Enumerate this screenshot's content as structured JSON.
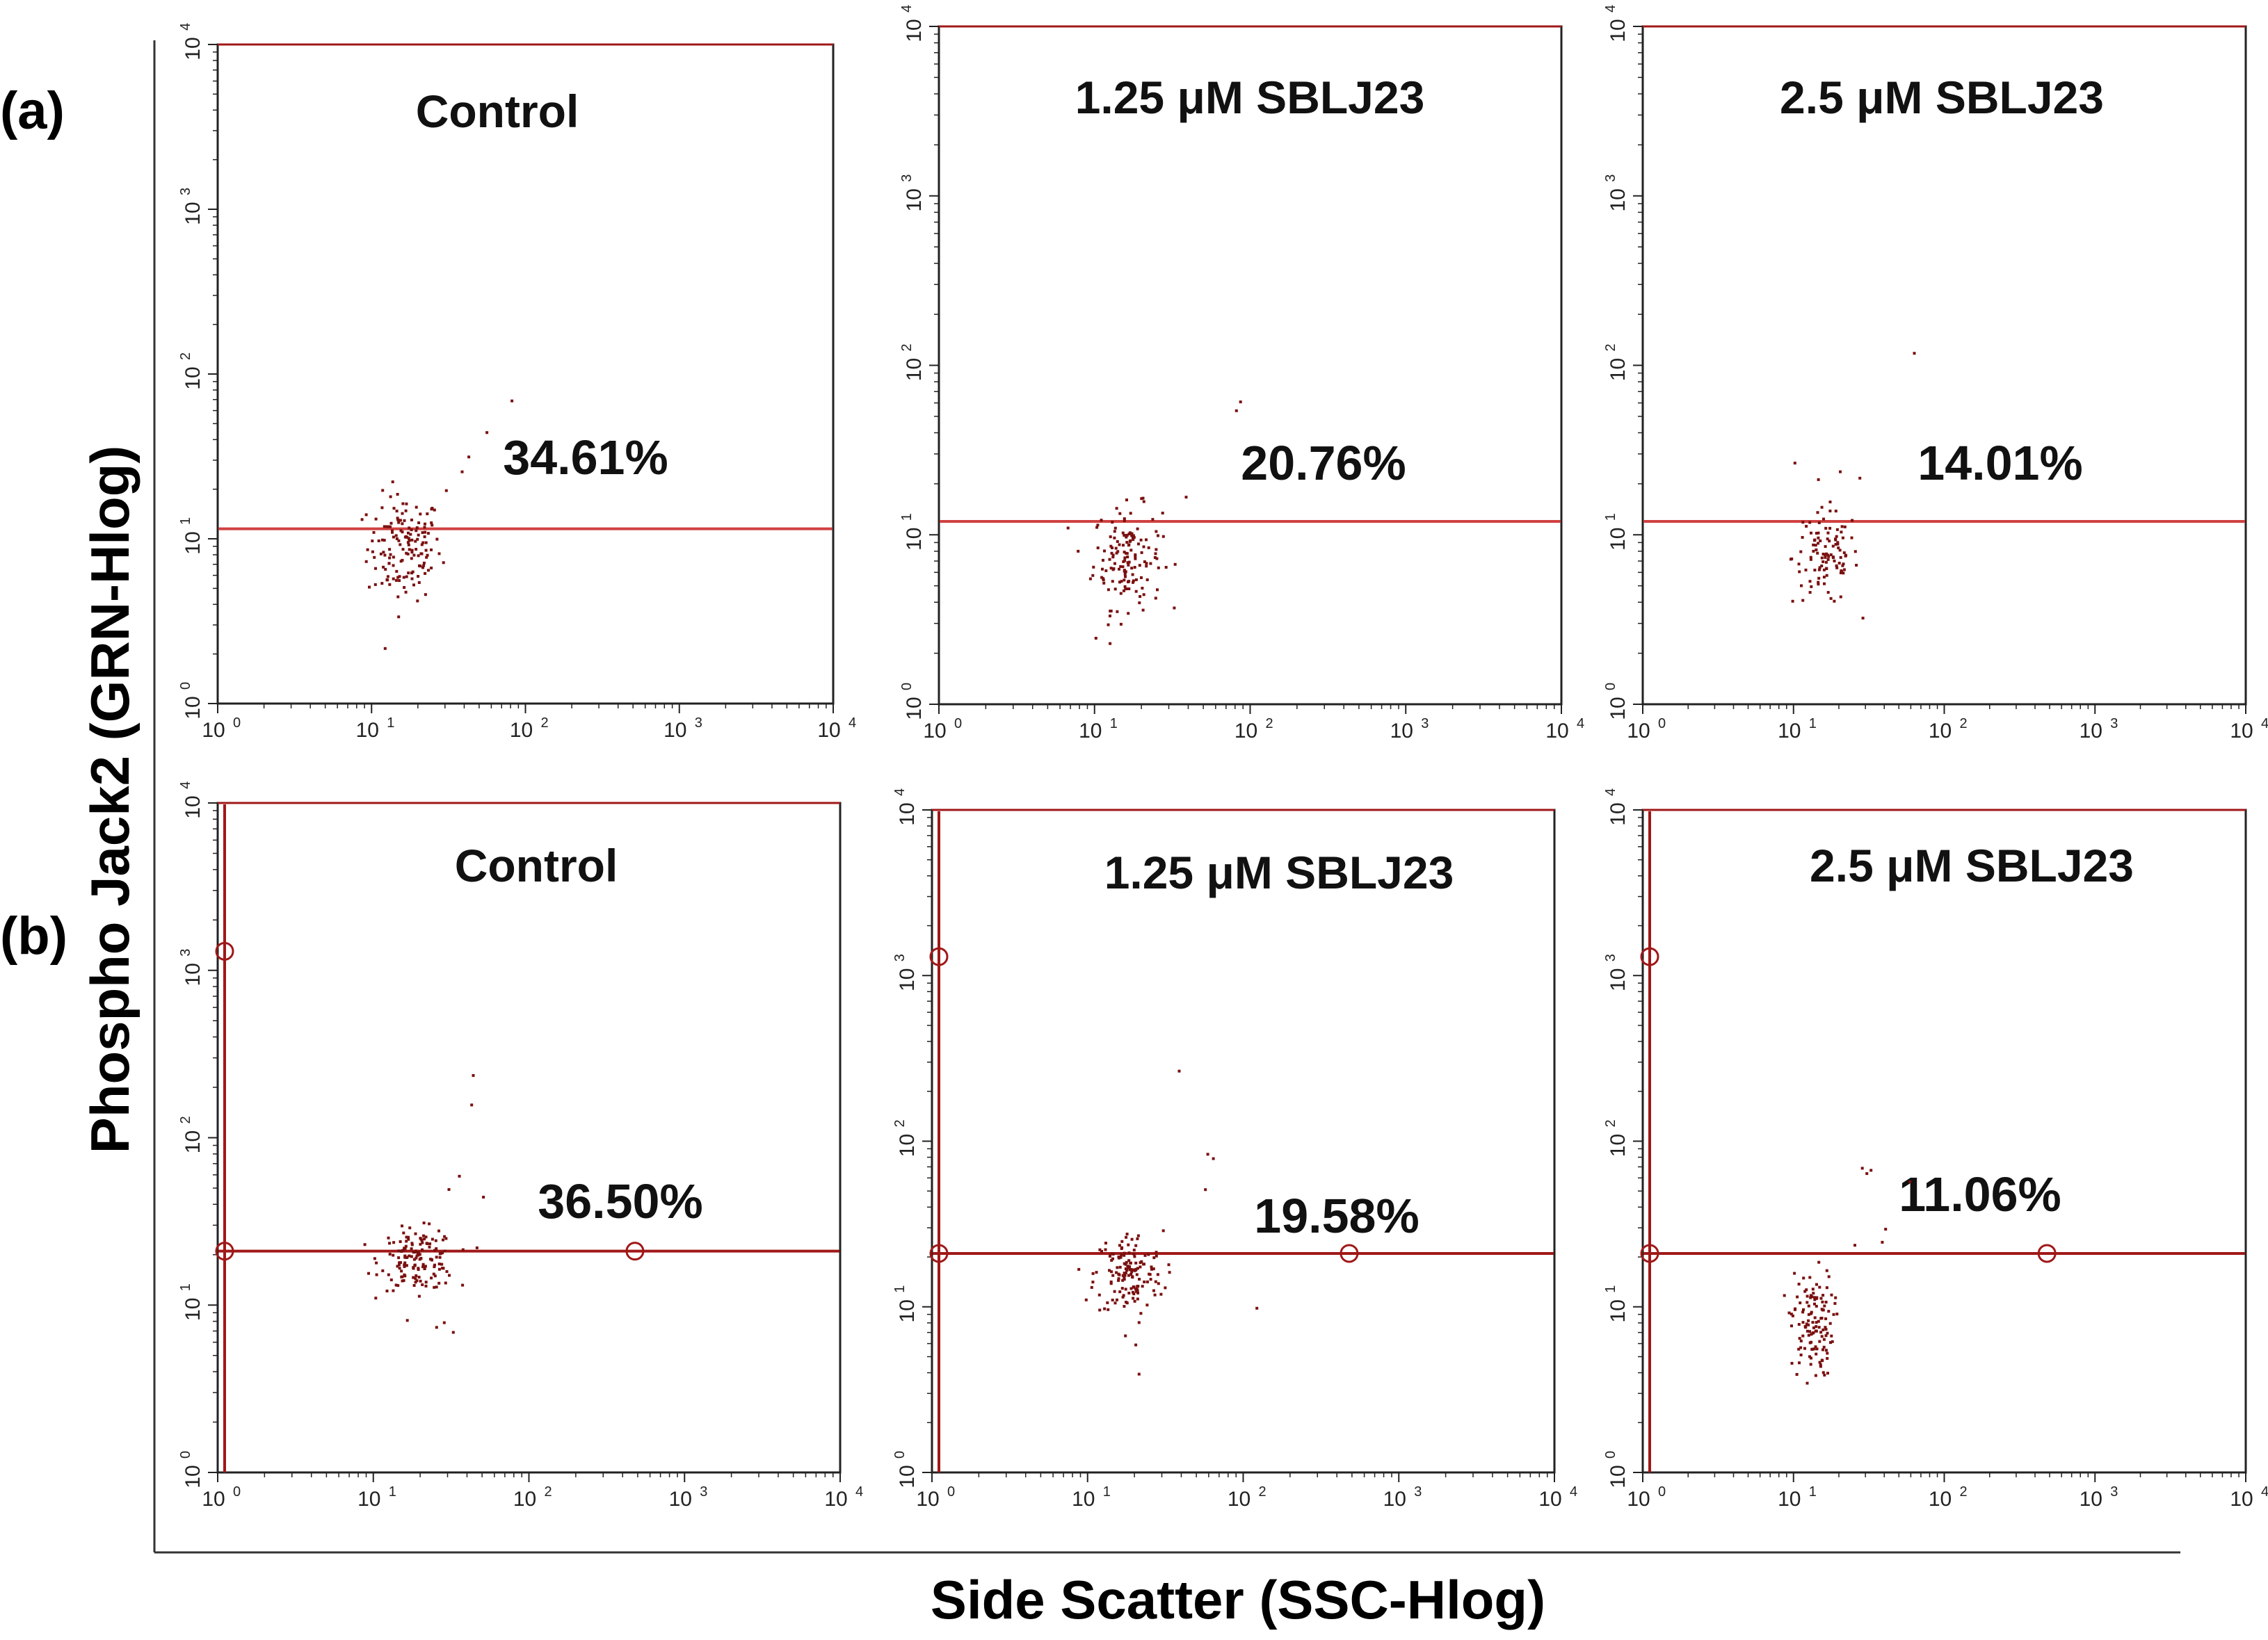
{
  "figure": {
    "y_axis_title": "Phospho Jack2 (GRN-Hlog)",
    "x_axis_title": "Side Scatter (SSC-Hlog)",
    "row_labels": [
      "(a)",
      "(b)"
    ]
  },
  "tick_labels": {
    "x": [
      {
        "base": "10",
        "exp": "0"
      },
      {
        "base": "10",
        "exp": "1"
      },
      {
        "base": "10",
        "exp": "2"
      },
      {
        "base": "10",
        "exp": "3"
      },
      {
        "base": "10",
        "exp": "4"
      }
    ],
    "y": [
      {
        "base": "10",
        "exp": "0"
      },
      {
        "base": "10",
        "exp": "1"
      },
      {
        "base": "10",
        "exp": "2"
      },
      {
        "base": "10",
        "exp": "3"
      },
      {
        "base": "10",
        "exp": "4"
      }
    ]
  },
  "colors": {
    "gate_line": "#d04040",
    "gate_line_b": "#a01818",
    "dots": "#7a1010",
    "frame": "#222222"
  },
  "chart_data": [
    {
      "type": "scatter",
      "row": "(a)",
      "title": "Control",
      "percent": "34.61%",
      "gate_y": 11.5,
      "vertical_gate": false,
      "xlim": [
        1,
        10000
      ],
      "ylim": [
        1,
        10000
      ],
      "x_scale": "log",
      "y_scale": "log",
      "cluster": {
        "cx": 16,
        "cy": 9,
        "sx": 0.12,
        "sy": 0.16,
        "n": 150
      },
      "outliers": [
        [
          80,
          70
        ],
        [
          55,
          45
        ],
        [
          42,
          32
        ],
        [
          38,
          26
        ],
        [
          12,
          2.2
        ],
        [
          30,
          20
        ]
      ]
    },
    {
      "type": "scatter",
      "row": "(a)",
      "title": "1.25 μM SBLJ23",
      "percent": "20.76%",
      "gate_y": 12,
      "vertical_gate": false,
      "xlim": [
        1,
        10000
      ],
      "ylim": [
        1,
        10000
      ],
      "x_scale": "log",
      "y_scale": "log",
      "cluster": {
        "cx": 16,
        "cy": 7.5,
        "sx": 0.11,
        "sy": 0.15,
        "n": 150
      },
      "outliers": [
        [
          85,
          62
        ],
        [
          80,
          55
        ],
        [
          38,
          17
        ],
        [
          10,
          2.5
        ],
        [
          12,
          3
        ]
      ]
    },
    {
      "type": "scatter",
      "row": "(a)",
      "title": "2.5 μM SBLJ23",
      "percent": "14.01%",
      "gate_y": 12,
      "vertical_gate": false,
      "xlim": [
        1,
        10000
      ],
      "ylim": [
        1,
        10000
      ],
      "x_scale": "log",
      "y_scale": "log",
      "cluster": {
        "cx": 16,
        "cy": 7.5,
        "sx": 0.11,
        "sy": 0.14,
        "n": 110
      },
      "outliers": [
        [
          62,
          120
        ],
        [
          10,
          27
        ],
        [
          27,
          22
        ],
        [
          20,
          24
        ]
      ]
    },
    {
      "type": "scatter",
      "row": "(b)",
      "title": "Control",
      "percent": "36.50%",
      "gate_y": 21,
      "vertical_gate": true,
      "xlim": [
        1,
        10000
      ],
      "ylim": [
        1,
        10000
      ],
      "x_scale": "log",
      "y_scale": "log",
      "cluster": {
        "cx": 19,
        "cy": 19,
        "sx": 0.12,
        "sy": 0.09,
        "n": 150
      },
      "outliers": [
        [
          43,
          240
        ],
        [
          42,
          160
        ],
        [
          35,
          60
        ],
        [
          30,
          50
        ],
        [
          50,
          45
        ],
        [
          28,
          8
        ],
        [
          32,
          7
        ],
        [
          25,
          7.5
        ]
      ]
    },
    {
      "type": "scatter",
      "row": "(b)",
      "title": "1.25 μM SBLJ23",
      "percent": "19.58%",
      "gate_y": 21,
      "vertical_gate": true,
      "xlim": [
        1,
        10000
      ],
      "ylim": [
        1,
        10000
      ],
      "x_scale": "log",
      "y_scale": "log",
      "cluster": {
        "cx": 18,
        "cy": 16,
        "sx": 0.11,
        "sy": 0.13,
        "n": 150
      },
      "outliers": [
        [
          38,
          270
        ],
        [
          58,
          85
        ],
        [
          63,
          80
        ],
        [
          56,
          52
        ],
        [
          120,
          10
        ],
        [
          21,
          4
        ],
        [
          20,
          6
        ]
      ]
    },
    {
      "type": "scatter",
      "row": "(b)",
      "title": "2.5 μM SBLJ23",
      "percent": "11.06%",
      "gate_y": 21,
      "vertical_gate": true,
      "xlim": [
        1,
        10000
      ],
      "ylim": [
        1,
        10000
      ],
      "x_scale": "log",
      "y_scale": "log",
      "cluster": {
        "cx": 13,
        "cy": 8,
        "sx": 0.07,
        "sy": 0.16,
        "n": 130
      },
      "outliers": [
        [
          28,
          70
        ],
        [
          32,
          68
        ],
        [
          30,
          65
        ],
        [
          58,
          58
        ],
        [
          40,
          30
        ],
        [
          38,
          25
        ],
        [
          25,
          24
        ]
      ]
    }
  ]
}
